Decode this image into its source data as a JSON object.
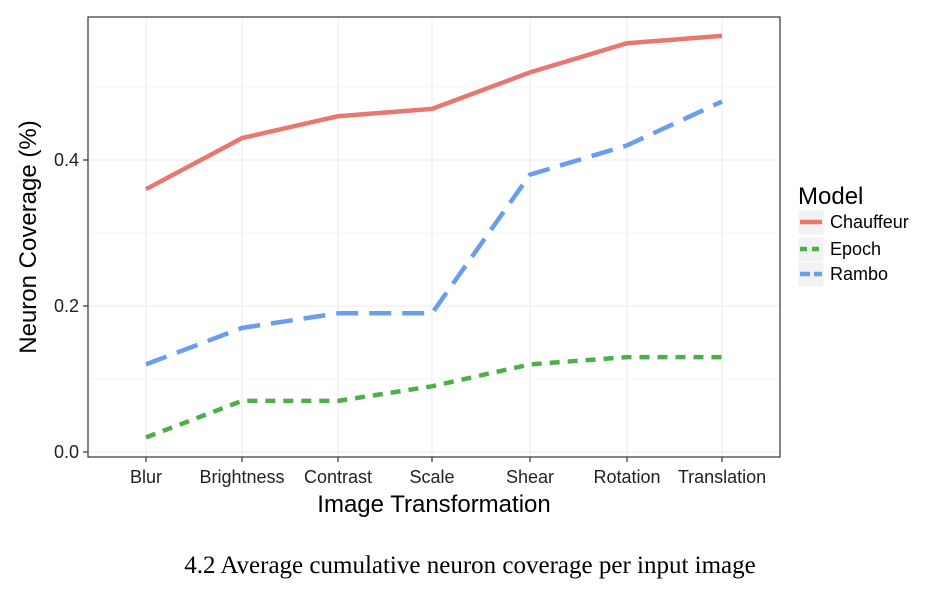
{
  "chart_data": {
    "type": "line",
    "categories": [
      "Blur",
      "Brightness",
      "Contrast",
      "Scale",
      "Shear",
      "Rotation",
      "Translation"
    ],
    "series": [
      {
        "name": "Chauffeur",
        "values": [
          0.36,
          0.43,
          0.46,
          0.47,
          0.52,
          0.56,
          0.57
        ],
        "color": "#E8776F",
        "dash": "solid"
      },
      {
        "name": "Epoch",
        "values": [
          0.02,
          0.07,
          0.07,
          0.09,
          0.12,
          0.13,
          0.13
        ],
        "color": "#4DAF4A",
        "dash": "dotted"
      },
      {
        "name": "Rambo",
        "values": [
          0.12,
          0.17,
          0.19,
          0.19,
          0.38,
          0.42,
          0.48
        ],
        "color": "#6A9CF0",
        "dash": "dashed"
      }
    ],
    "y_ticks": [
      0.0,
      0.2,
      0.4
    ],
    "y_tick_labels": [
      "0.0",
      "0.2",
      "0.4"
    ],
    "ylim": [
      -0.0125,
      0.5925
    ],
    "xlabel": "Image Transformation",
    "ylabel": "Neuron Coverage (%)",
    "legend_title": "Model",
    "legend_position": "right",
    "grid": true
  },
  "caption": "4.2 Average cumulative neuron coverage per input image"
}
